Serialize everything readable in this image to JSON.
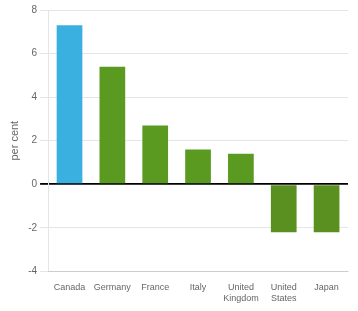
{
  "chart_data": {
    "type": "bar",
    "categories": [
      "Canada",
      "Germany",
      "France",
      "Italy",
      "United\nKingdom",
      "United\nStates",
      "Japan"
    ],
    "values": [
      7.3,
      5.4,
      2.7,
      1.6,
      1.4,
      -2.2,
      -2.2
    ],
    "colors": [
      "#3ab0e0",
      "#5a9a20",
      "#5a9a20",
      "#5a9a20",
      "#5a9a20",
      "#5a9020",
      "#5a9020"
    ],
    "ylabel": "per cent",
    "ylim": [
      -4,
      8
    ],
    "yticks": [
      -4,
      -2,
      0,
      2,
      4,
      6,
      8
    ],
    "grid": true
  }
}
